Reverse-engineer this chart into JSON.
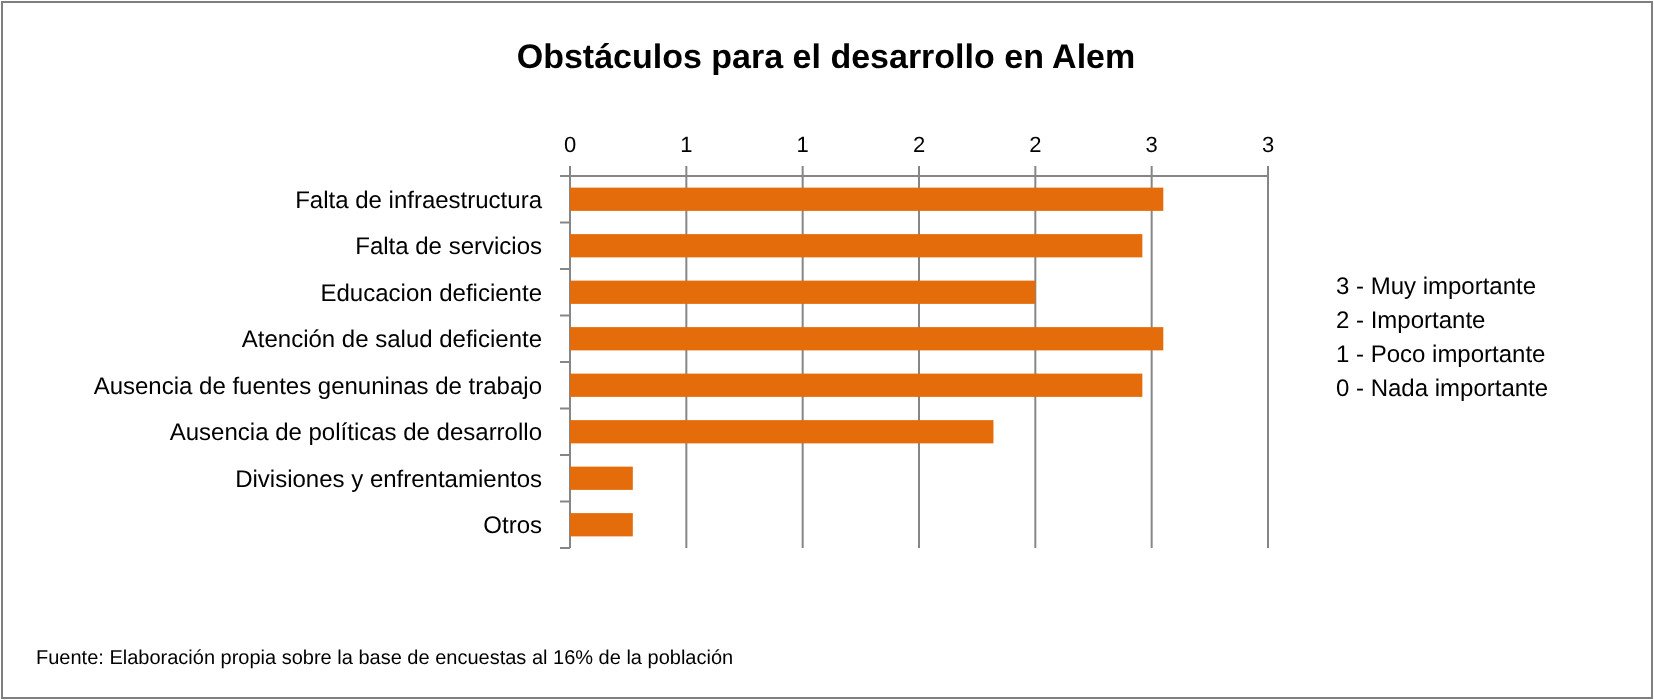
{
  "chart_data": {
    "type": "bar",
    "orientation": "horizontal",
    "title": "Obstáculos para el desarrollo en Alem",
    "categories": [
      "Falta de infraestructura",
      "Falta de servicios",
      "Educacion deficiente",
      "Atención de salud deficiente",
      "Ausencia de fuentes genuninas de trabajo",
      "Ausencia de políticas de desarrollo",
      "Divisiones y enfrentamientos",
      "Otros"
    ],
    "values": [
      2.55,
      2.46,
      2.0,
      2.55,
      2.46,
      1.82,
      0.27,
      0.27
    ],
    "color": "#e46c0a",
    "xlim": [
      0,
      3
    ],
    "xticks": [
      0,
      {
        "value": 0.5,
        "label": "1"
      },
      1,
      {
        "value": 1.5,
        "label": "2"
      },
      2,
      {
        "value": 2.5,
        "label": "3"
      },
      3
    ],
    "grid": "x",
    "annotations": [
      "3 - Muy importante",
      "2 - Importante",
      "1 - Poco importante",
      "0 - Nada importante",
      "Fuente: Elaboración propia sobre la base de encuestas al 16%  de la población"
    ]
  }
}
